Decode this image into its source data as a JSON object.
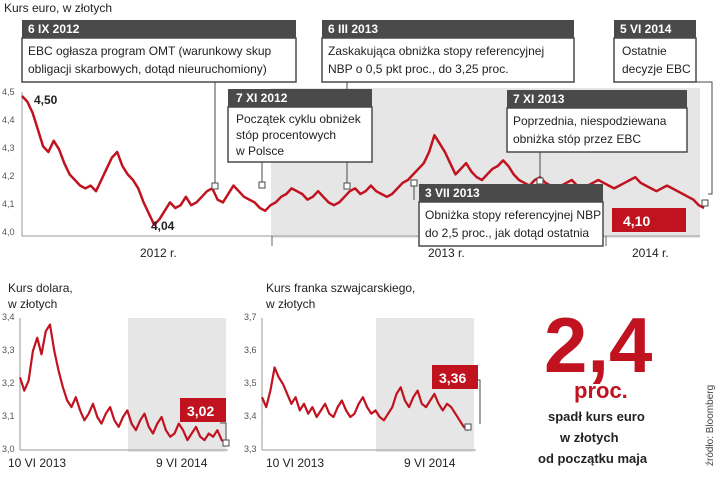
{
  "colors": {
    "line": "#c1121f",
    "band": "#e6e6e6",
    "annotation_head": "#4a4a4a",
    "annotation_border": "#4a4a4a",
    "highlight_red": "#c1121f"
  },
  "source": "źródło: Bloomberg",
  "headline": {
    "value": "2,4",
    "unit": "proc.",
    "caption": [
      "spadł kurs euro",
      "w złotych",
      "od początku maja"
    ]
  },
  "chart_data": [
    {
      "type": "line",
      "title": "Kurs euro, w złotych",
      "ylim": [
        4.0,
        4.5
      ],
      "yticks": [
        "4,0",
        "4,1",
        "4,2",
        "4,3",
        "4,4",
        "4,5"
      ],
      "xlabels": [
        "2012 r.",
        "2013 r.",
        "2014 r."
      ],
      "start_label": "4,50",
      "min_label": "4,04",
      "last_label": "4,10",
      "series": [
        {
          "values": [
            4.5,
            4.48,
            4.44,
            4.38,
            4.32,
            4.3,
            4.34,
            4.31,
            4.26,
            4.22,
            4.2,
            4.18,
            4.17,
            4.18,
            4.16,
            4.2,
            4.24,
            4.28,
            4.3,
            4.25,
            4.22,
            4.2,
            4.17,
            4.12,
            4.08,
            4.04,
            4.06,
            4.09,
            4.12,
            4.1,
            4.11,
            4.14,
            4.11,
            4.12,
            4.14,
            4.16,
            4.17,
            4.13,
            4.12,
            4.15,
            4.18,
            4.16,
            4.14,
            4.13,
            4.12,
            4.1,
            4.09,
            4.11,
            4.12,
            4.14,
            4.15,
            4.17,
            4.16,
            4.15,
            4.13,
            4.14,
            4.16,
            4.14,
            4.12,
            4.11,
            4.12,
            4.14,
            4.16,
            4.17,
            4.15,
            4.16,
            4.18,
            4.16,
            4.15,
            4.14,
            4.15,
            4.17,
            4.19,
            4.2,
            4.22,
            4.24,
            4.26,
            4.3,
            4.36,
            4.33,
            4.3,
            4.26,
            4.22,
            4.24,
            4.26,
            4.23,
            4.21,
            4.2,
            4.22,
            4.24,
            4.25,
            4.27,
            4.25,
            4.22,
            4.2,
            4.19,
            4.18,
            4.2,
            4.21,
            4.19,
            4.18,
            4.17,
            4.18,
            4.19,
            4.2,
            4.18,
            4.17,
            4.18,
            4.19,
            4.2,
            4.19,
            4.18,
            4.17,
            4.18,
            4.19,
            4.2,
            4.21,
            4.19,
            4.18,
            4.17,
            4.16,
            4.17,
            4.18,
            4.17,
            4.16,
            4.15,
            4.14,
            4.13,
            4.11,
            4.1
          ]
        }
      ],
      "annotations": [
        {
          "head": "6 IX 2012",
          "lines": [
            "EBC ogłasza program OMT (warunkowy skup",
            "obligacji skarbowych, dotąd nieuruchomiony)"
          ]
        },
        {
          "head": "7 XI 2012",
          "lines": [
            "Początek cyklu obniżek",
            "stóp procentowych",
            "w Polsce"
          ]
        },
        {
          "head": "6 III 2013",
          "lines": [
            "Zaskakująca obniżka stopy referencyjnej",
            "NBP o 0,5 pkt proc., do 3,25 proc."
          ]
        },
        {
          "head": "3 VII 2013",
          "lines": [
            "Obniżka stopy referencyjnej NBP",
            "do 2,5 proc., jak dotąd ostatnia"
          ]
        },
        {
          "head": "7 XI 2013",
          "lines": [
            "Poprzednia, niespodziewana",
            "obniżka stóp przez EBC"
          ]
        },
        {
          "head": "5 VI 2014",
          "lines": [
            "Ostatnie",
            "decyzje EBC"
          ]
        }
      ]
    },
    {
      "type": "line",
      "title": [
        "Kurs dolara,",
        "w złotych"
      ],
      "ylim": [
        3.0,
        3.4
      ],
      "yticks": [
        "3,0",
        "3,1",
        "3,2",
        "3,3",
        "3,4"
      ],
      "xlabels": [
        "10 VI 2013",
        "9 VI 2014"
      ],
      "last_label": "3,02",
      "series": [
        {
          "values": [
            3.22,
            3.18,
            3.21,
            3.3,
            3.34,
            3.29,
            3.36,
            3.38,
            3.3,
            3.24,
            3.19,
            3.15,
            3.13,
            3.16,
            3.12,
            3.09,
            3.11,
            3.14,
            3.1,
            3.08,
            3.11,
            3.13,
            3.09,
            3.07,
            3.1,
            3.12,
            3.08,
            3.06,
            3.09,
            3.11,
            3.07,
            3.05,
            3.08,
            3.1,
            3.06,
            3.04,
            3.05,
            3.08,
            3.06,
            3.03,
            3.05,
            3.07,
            3.04,
            3.03,
            3.05,
            3.04,
            3.06,
            3.03,
            3.02
          ]
        }
      ]
    },
    {
      "type": "line",
      "title": [
        "Kurs franka szwajcarskiego,",
        "w złotych"
      ],
      "ylim": [
        3.3,
        3.7
      ],
      "yticks": [
        "3,3",
        "3,4",
        "3,5",
        "3,6",
        "3,7"
      ],
      "xlabels": [
        "10 VI 2013",
        "9 VI 2014"
      ],
      "last_label": "3,36",
      "series": [
        {
          "values": [
            3.46,
            3.43,
            3.48,
            3.55,
            3.52,
            3.5,
            3.47,
            3.44,
            3.46,
            3.42,
            3.44,
            3.41,
            3.43,
            3.4,
            3.42,
            3.44,
            3.41,
            3.4,
            3.43,
            3.45,
            3.42,
            3.4,
            3.41,
            3.44,
            3.46,
            3.43,
            3.41,
            3.42,
            3.4,
            3.39,
            3.41,
            3.43,
            3.47,
            3.49,
            3.45,
            3.43,
            3.46,
            3.48,
            3.44,
            3.43,
            3.45,
            3.47,
            3.44,
            3.42,
            3.44,
            3.43,
            3.41,
            3.39,
            3.37,
            3.36
          ]
        }
      ]
    }
  ]
}
